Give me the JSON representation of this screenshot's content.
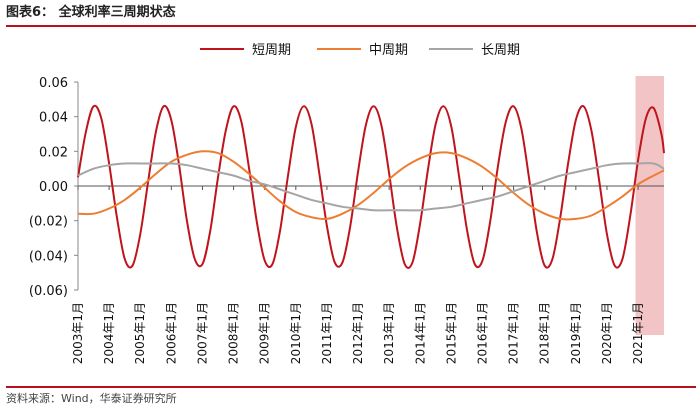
{
  "header": {
    "title": "图表6：  全球利率三周期状态"
  },
  "footer": {
    "source": "资料来源：Wind，华泰证券研究所"
  },
  "chart_data": {
    "type": "line",
    "title": "",
    "xlabel": "",
    "ylabel": "",
    "ylim": [
      -0.06,
      0.06
    ],
    "y_ticks": [
      0.06,
      0.04,
      0.02,
      0.0,
      -0.02,
      -0.04,
      -0.06
    ],
    "y_tick_labels": [
      "0.06",
      "0.04",
      "0.02",
      "0.00",
      "(0.02)",
      "(0.04)",
      "(0.06)"
    ],
    "x_range": [
      2003.0,
      2021.833
    ],
    "x_tick_labels": [
      "2003年1月",
      "2004年1月",
      "2005年1月",
      "2006年1月",
      "2007年1月",
      "2008年1月",
      "2009年1月",
      "2010年1月",
      "2011年1月",
      "2012年1月",
      "2013年1月",
      "2014年1月",
      "2015年1月",
      "2016年1月",
      "2017年1月",
      "2018年1月",
      "2019年1月",
      "2020年1月",
      "2021年1月"
    ],
    "legend": {
      "position": "top"
    },
    "highlight": {
      "from": 2020.917,
      "to": 2021.833,
      "color": "#f2c4c6"
    },
    "series": [
      {
        "name": "短周期",
        "color": "#c0141c",
        "x": [
          2003.0,
          2003.25,
          2003.5,
          2003.75,
          2004.0,
          2004.25,
          2004.5,
          2004.75,
          2005.0,
          2005.25,
          2005.5,
          2005.75,
          2006.0,
          2006.25,
          2006.5,
          2006.75,
          2007.0,
          2007.25,
          2007.5,
          2007.75,
          2008.0,
          2008.25,
          2008.5,
          2008.75,
          2009.0,
          2009.25,
          2009.5,
          2009.75,
          2010.0,
          2010.25,
          2010.5,
          2010.75,
          2011.0,
          2011.25,
          2011.5,
          2011.75,
          2012.0,
          2012.25,
          2012.5,
          2012.75,
          2013.0,
          2013.25,
          2013.5,
          2013.75,
          2014.0,
          2014.25,
          2014.5,
          2014.75,
          2015.0,
          2015.25,
          2015.5,
          2015.75,
          2016.0,
          2016.25,
          2016.5,
          2016.75,
          2017.0,
          2017.25,
          2017.5,
          2017.75,
          2018.0,
          2018.25,
          2018.5,
          2018.75,
          2019.0,
          2019.25,
          2019.5,
          2019.75,
          2020.0,
          2020.25,
          2020.5,
          2020.75,
          2021.0,
          2021.25,
          2021.5,
          2021.75,
          2021.833
        ],
        "y": [
          0.005,
          0.031,
          0.046,
          0.039,
          0.013,
          -0.018,
          -0.042,
          -0.046,
          -0.028,
          0.002,
          0.031,
          0.046,
          0.038,
          0.012,
          -0.02,
          -0.042,
          -0.045,
          -0.026,
          0.005,
          0.032,
          0.046,
          0.037,
          0.01,
          -0.021,
          -0.043,
          -0.045,
          -0.025,
          0.006,
          0.034,
          0.046,
          0.036,
          0.008,
          -0.023,
          -0.044,
          -0.044,
          -0.023,
          0.008,
          0.035,
          0.046,
          0.035,
          0.007,
          -0.024,
          -0.045,
          -0.044,
          -0.021,
          0.01,
          0.036,
          0.046,
          0.034,
          0.005,
          -0.025,
          -0.045,
          -0.043,
          -0.02,
          0.012,
          0.037,
          0.046,
          0.033,
          0.004,
          -0.027,
          -0.046,
          -0.042,
          -0.018,
          0.013,
          0.038,
          0.046,
          0.032,
          0.003,
          -0.028,
          -0.046,
          -0.042,
          -0.017,
          0.015,
          0.039,
          0.045,
          0.03,
          0.019
        ]
      },
      {
        "name": "中周期",
        "color": "#ed7d31",
        "x": [
          2003.0,
          2003.5,
          2004.0,
          2004.5,
          2005.0,
          2005.5,
          2006.0,
          2006.5,
          2007.0,
          2007.5,
          2008.0,
          2008.5,
          2009.0,
          2009.5,
          2010.0,
          2010.5,
          2011.0,
          2011.5,
          2012.0,
          2012.5,
          2013.0,
          2013.5,
          2014.0,
          2014.5,
          2015.0,
          2015.5,
          2016.0,
          2016.5,
          2017.0,
          2017.5,
          2018.0,
          2018.5,
          2019.0,
          2019.5,
          2020.0,
          2020.5,
          2021.0,
          2021.5,
          2021.833
        ],
        "y": [
          -0.016,
          -0.016,
          -0.013,
          -0.008,
          -0.001,
          0.007,
          0.014,
          0.018,
          0.02,
          0.019,
          0.014,
          0.007,
          -0.001,
          -0.009,
          -0.015,
          -0.018,
          -0.019,
          -0.016,
          -0.011,
          -0.004,
          0.004,
          0.011,
          0.016,
          0.019,
          0.019,
          0.016,
          0.011,
          0.004,
          -0.004,
          -0.011,
          -0.016,
          -0.019,
          -0.019,
          -0.017,
          -0.012,
          -0.006,
          0.001,
          0.006,
          0.009
        ]
      },
      {
        "name": "长周期",
        "color": "#a5a5a5",
        "x": [
          2003.0,
          2003.5,
          2004.0,
          2004.5,
          2005.0,
          2005.5,
          2006.0,
          2006.5,
          2007.0,
          2007.5,
          2008.0,
          2008.5,
          2009.0,
          2009.5,
          2010.0,
          2010.5,
          2011.0,
          2011.5,
          2012.0,
          2012.5,
          2013.0,
          2013.5,
          2014.0,
          2014.5,
          2015.0,
          2015.5,
          2016.0,
          2016.5,
          2017.0,
          2017.5,
          2018.0,
          2018.5,
          2019.0,
          2019.5,
          2020.0,
          2020.5,
          2021.0,
          2021.5,
          2021.833
        ],
        "y": [
          0.006,
          0.01,
          0.012,
          0.013,
          0.013,
          0.013,
          0.013,
          0.012,
          0.01,
          0.008,
          0.006,
          0.003,
          0.001,
          -0.002,
          -0.005,
          -0.008,
          -0.01,
          -0.012,
          -0.013,
          -0.014,
          -0.014,
          -0.014,
          -0.014,
          -0.013,
          -0.012,
          -0.01,
          -0.008,
          -0.006,
          -0.003,
          0.0,
          0.003,
          0.006,
          0.008,
          0.01,
          0.012,
          0.013,
          0.013,
          0.013,
          0.01
        ]
      }
    ]
  }
}
